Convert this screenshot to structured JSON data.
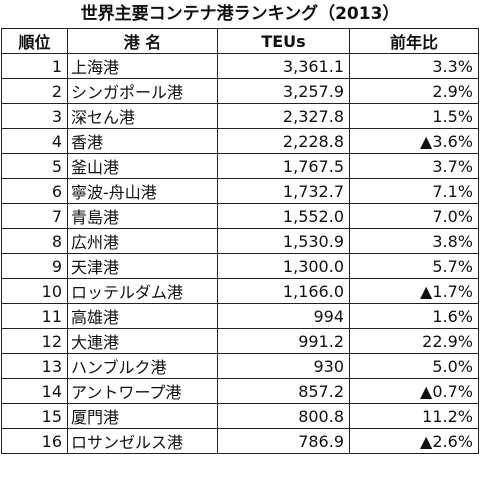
{
  "title": "世界主要コンテナ港ランキング（2013）",
  "headers": {
    "rank": "順位",
    "port": "港 名",
    "teu": "TEUs",
    "growth": "前年比"
  },
  "rows": [
    {
      "rank": "1",
      "port": "上海港",
      "teu": "3,361.1",
      "growth": "3.3%"
    },
    {
      "rank": "2",
      "port": "シンガポール港",
      "teu": "3,257.9",
      "growth": "2.9%"
    },
    {
      "rank": "3",
      "port": "深セん港",
      "teu": "2,327.8",
      "growth": "1.5%"
    },
    {
      "rank": "4",
      "port": "香港",
      "teu": "2,228.8",
      "growth": "▲3.6%"
    },
    {
      "rank": "5",
      "port": "釜山港",
      "teu": "1,767.5",
      "growth": "3.7%"
    },
    {
      "rank": "6",
      "port": "寧波-舟山港",
      "teu": "1,732.7",
      "growth": "7.1%"
    },
    {
      "rank": "7",
      "port": "青島港",
      "teu": "1,552.0",
      "growth": "7.0%"
    },
    {
      "rank": "8",
      "port": "広州港",
      "teu": "1,530.9",
      "growth": "3.8%"
    },
    {
      "rank": "9",
      "port": "天津港",
      "teu": "1,300.0",
      "growth": "5.7%"
    },
    {
      "rank": "10",
      "port": "ロッテルダム港",
      "teu": "1,166.0",
      "growth": "▲1.7%"
    },
    {
      "rank": "11",
      "port": "高雄港",
      "teu": "994",
      "growth": "1.6%"
    },
    {
      "rank": "12",
      "port": "大連港",
      "teu": "991.2",
      "growth": "22.9%"
    },
    {
      "rank": "13",
      "port": "ハンブルク港",
      "teu": "930",
      "growth": "5.0%"
    },
    {
      "rank": "14",
      "port": "アントワープ港",
      "teu": "857.2",
      "growth": "▲0.7%"
    },
    {
      "rank": "15",
      "port": "厦門港",
      "teu": "800.8",
      "growth": "11.2%"
    },
    {
      "rank": "16",
      "port": "ロサンゼルス港",
      "teu": "786.9",
      "growth": "▲2.6%"
    }
  ]
}
